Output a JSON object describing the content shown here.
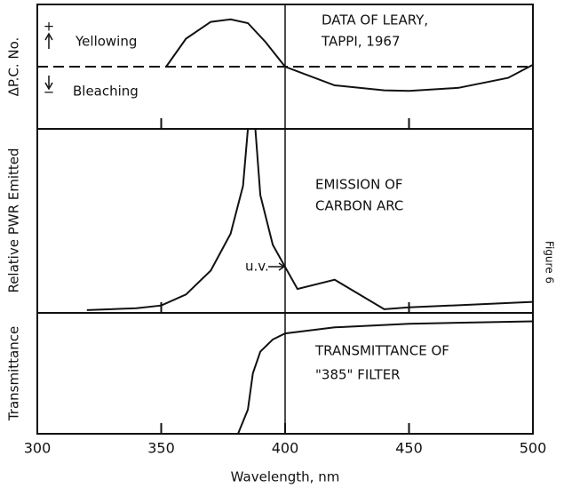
{
  "figure_label": "Figure 6",
  "chart_data": [
    {
      "type": "line",
      "ylabel": "ΔP.C. No.",
      "annotations": [
        "Yellowing",
        "Bleaching",
        "DATA OF LEARY,",
        "TAPPI, 1967",
        "+",
        "−"
      ],
      "x": [
        352,
        360,
        370,
        378,
        385,
        392,
        400,
        420,
        440,
        450,
        470,
        490,
        500
      ],
      "values": [
        0,
        0.45,
        0.72,
        0.76,
        0.7,
        0.4,
        0,
        -0.3,
        -0.38,
        -0.39,
        -0.34,
        -0.18,
        0.03
      ],
      "color": "#111111",
      "xlim": [
        300,
        500
      ],
      "ylim": [
        -1,
        1
      ]
    },
    {
      "type": "line",
      "ylabel": "Relative PWR Emitted",
      "annotations": [
        "EMISSION OF",
        "CARBON ARC",
        "u.v."
      ],
      "x": [
        320,
        340,
        350,
        360,
        370,
        378,
        383,
        385,
        388,
        390,
        395,
        400,
        405,
        420,
        440,
        450,
        500
      ],
      "values": [
        0.015,
        0.025,
        0.04,
        0.1,
        0.23,
        0.43,
        0.69,
        1.0,
        1.0,
        0.64,
        0.37,
        0.25,
        0.13,
        0.18,
        0.02,
        0.03,
        0.06
      ],
      "color": "#111111",
      "xlim": [
        300,
        500
      ],
      "ylim": [
        0,
        1
      ]
    },
    {
      "type": "line",
      "ylabel": "Transmittance",
      "xlabel": "Wavelength, nm",
      "annotations": [
        "TRANSMITTANCE OF",
        "\"385\" FILTER"
      ],
      "x": [
        381,
        385,
        387,
        390,
        395,
        400,
        420,
        450,
        500
      ],
      "values": [
        0,
        0.2,
        0.5,
        0.68,
        0.78,
        0.83,
        0.88,
        0.91,
        0.93
      ],
      "color": "#111111",
      "xlim": [
        300,
        500
      ],
      "ylim": [
        0,
        1
      ],
      "xticks": [
        300,
        350,
        400,
        450,
        500
      ]
    }
  ]
}
